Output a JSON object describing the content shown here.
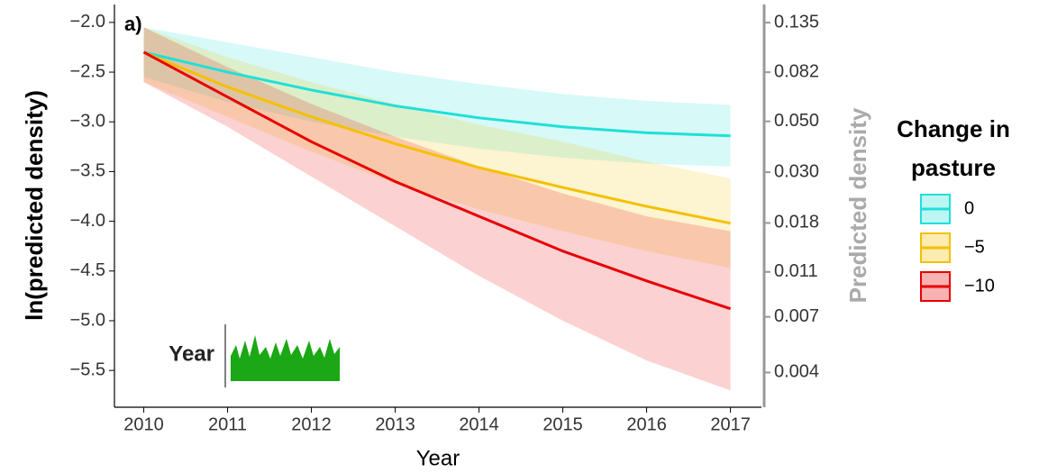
{
  "chart_data": {
    "type": "line",
    "annotations": [
      "a)",
      "Year"
    ],
    "x_label": "Year",
    "y_label": "ln(predicted density)",
    "y2_label": "Predicted density",
    "x": [
      2010,
      2011,
      2012,
      2013,
      2014,
      2015,
      2016,
      2017
    ],
    "xlim": [
      2009.65,
      2017.37
    ],
    "xticks": [
      2010,
      2011,
      2012,
      2013,
      2014,
      2015,
      2016,
      2017
    ],
    "ylim": [
      -5.87,
      -1.82
    ],
    "yticks": [
      {
        "value": -2.0,
        "label": "−2.0"
      },
      {
        "value": -2.5,
        "label": "−2.5"
      },
      {
        "value": -3.0,
        "label": "−3.0"
      },
      {
        "value": -3.5,
        "label": "−3.5"
      },
      {
        "value": -4.0,
        "label": "−4.0"
      },
      {
        "value": -4.5,
        "label": "−4.5"
      },
      {
        "value": -5.0,
        "label": "−5.0"
      },
      {
        "value": -5.5,
        "label": "−5.5"
      }
    ],
    "y2lim": [
      0.00282,
      0.162
    ],
    "y2_log_scale": true,
    "y2ticks": [
      0.135,
      0.082,
      {
        "value": 0.05,
        "label": "0.050"
      },
      {
        "value": 0.03,
        "label": "0.030"
      },
      0.018,
      0.011,
      0.007,
      0.004
    ],
    "legend_title": "Change in pasture",
    "legend": "right",
    "series": [
      {
        "name": "0",
        "color": "#1fe0d8",
        "values": [
          -2.3,
          -2.5,
          -2.68,
          -2.84,
          -2.96,
          -3.05,
          -3.11,
          -3.14
        ],
        "upper": [
          -2.05,
          -2.2,
          -2.35,
          -2.5,
          -2.62,
          -2.72,
          -2.79,
          -2.83
        ],
        "lower": [
          -2.55,
          -2.8,
          -3.0,
          -3.15,
          -3.27,
          -3.36,
          -3.42,
          -3.45
        ]
      },
      {
        "name": "−5",
        "color": "#f5c000",
        "values": [
          -2.3,
          -2.65,
          -2.95,
          -3.22,
          -3.46,
          -3.66,
          -3.85,
          -4.02
        ],
        "upper": [
          -2.05,
          -2.35,
          -2.6,
          -2.82,
          -3.03,
          -3.2,
          -3.4,
          -3.57
        ],
        "lower": [
          -2.6,
          -2.95,
          -3.3,
          -3.62,
          -3.88,
          -4.1,
          -4.3,
          -4.47
        ]
      },
      {
        "name": "−10",
        "color": "#e80000",
        "values": [
          -2.3,
          -2.75,
          -3.2,
          -3.6,
          -3.95,
          -4.3,
          -4.6,
          -4.88
        ],
        "upper": [
          -2.05,
          -2.45,
          -2.82,
          -3.15,
          -3.45,
          -3.72,
          -3.95,
          -4.1
        ],
        "lower": [
          -2.6,
          -3.05,
          -3.55,
          -4.05,
          -4.55,
          -5.0,
          -5.4,
          -5.7
        ]
      }
    ]
  }
}
